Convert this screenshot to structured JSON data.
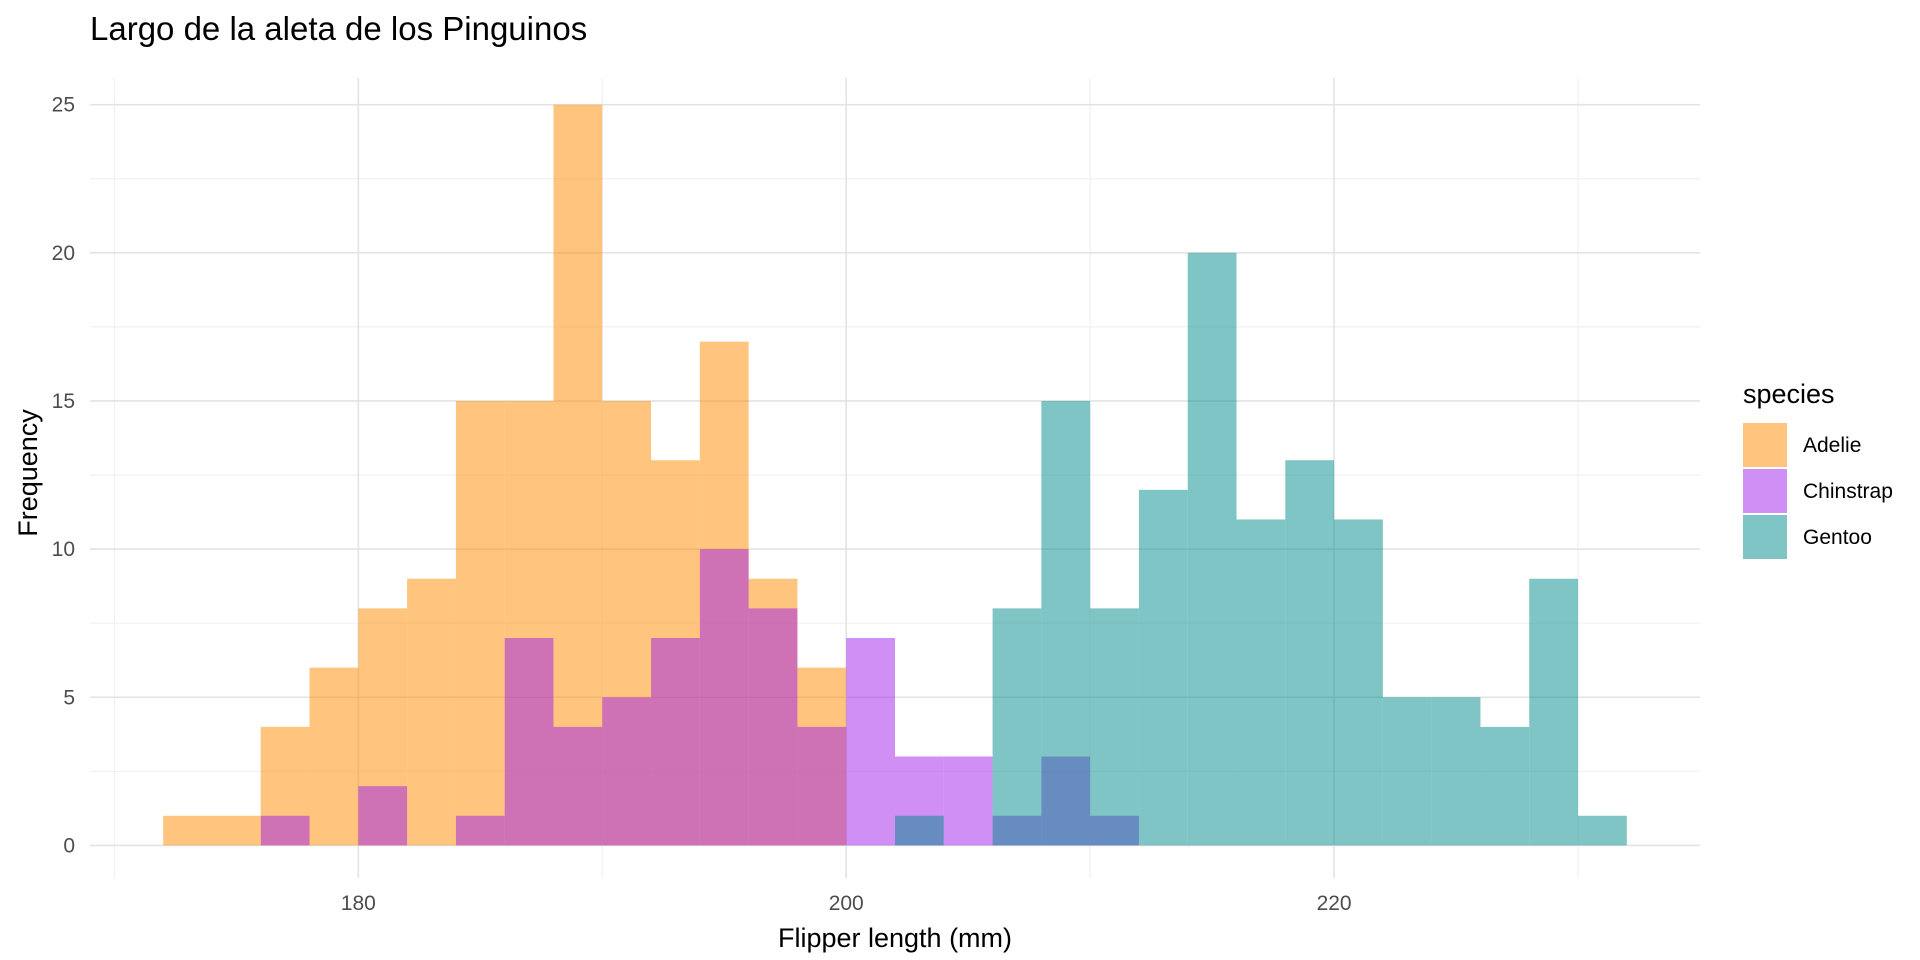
{
  "chart_data": {
    "type": "histogram",
    "title": "Largo de la aleta de los Pinguinos",
    "xlabel": "Flipper length (mm)",
    "ylabel": "Frequency",
    "xlim": [
      169,
      235
    ],
    "ylim": [
      -1.1,
      25.9
    ],
    "x_ticks": [
      180,
      200,
      220
    ],
    "x_minor_ticks": [
      170,
      190,
      210,
      230
    ],
    "y_ticks": [
      0,
      5,
      10,
      15,
      20,
      25
    ],
    "y_minor_ticks": [
      2.5,
      7.5,
      12.5,
      17.5,
      22.5
    ],
    "grid": true,
    "bin_width": 2,
    "bin_edges": [
      172,
      174,
      176,
      178,
      180,
      182,
      184,
      186,
      188,
      190,
      192,
      194,
      196,
      198,
      200,
      202,
      204,
      206,
      208,
      210,
      212,
      214,
      216,
      218,
      220,
      222,
      224,
      226,
      228,
      230,
      232
    ],
    "opacity": 0.5,
    "legend": {
      "title": "species",
      "position": "right"
    },
    "series": [
      {
        "name": "Adelie",
        "color": "#ff8c00",
        "values": [
          1,
          1,
          4,
          6,
          8,
          9,
          15,
          15,
          25,
          15,
          13,
          17,
          9,
          6,
          0,
          0,
          0,
          0,
          0,
          0,
          0,
          0,
          0,
          0,
          0,
          0,
          0,
          0,
          0,
          0
        ]
      },
      {
        "name": "Chinstrap",
        "color": "#9f1fec",
        "values": [
          0,
          0,
          1,
          0,
          2,
          0,
          1,
          7,
          4,
          5,
          7,
          10,
          8,
          4,
          7,
          3,
          3,
          1,
          3,
          1,
          0,
          0,
          0,
          0,
          0,
          0,
          0,
          0,
          0,
          0
        ]
      },
      {
        "name": "Gentoo",
        "color": "#008b8b",
        "values": [
          0,
          0,
          0,
          0,
          0,
          0,
          0,
          0,
          0,
          0,
          0,
          0,
          0,
          0,
          0,
          1,
          0,
          8,
          15,
          8,
          12,
          20,
          11,
          13,
          11,
          5,
          5,
          4,
          9,
          1
        ]
      }
    ]
  }
}
